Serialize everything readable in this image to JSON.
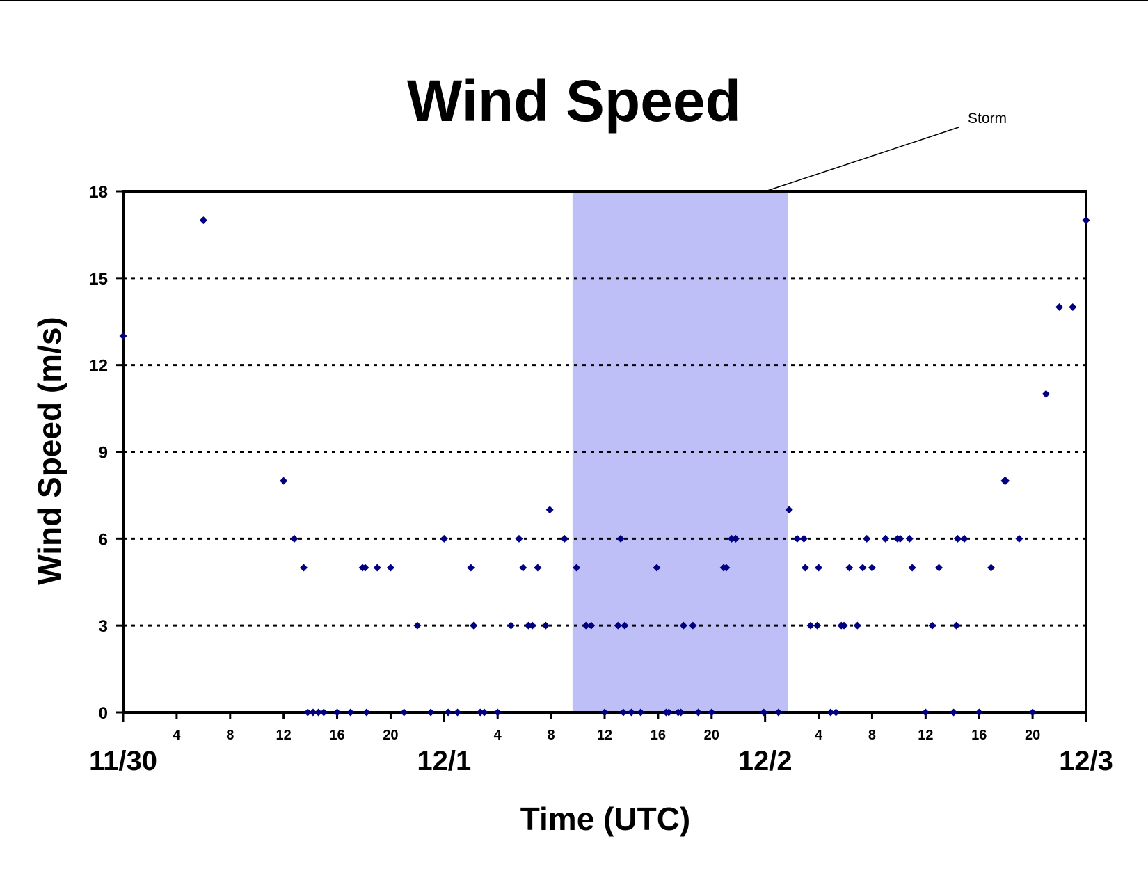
{
  "chart_data": {
    "type": "scatter",
    "title": "Wind Speed",
    "xlabel": "Time (UTC)",
    "ylabel": "Wind Speed (m/s)",
    "x_unit": "hours after 11/30 00 UTC",
    "xlim": [
      0,
      72
    ],
    "ylim": [
      0,
      18
    ],
    "y_ticks": [
      0,
      3,
      6,
      9,
      12,
      15,
      18
    ],
    "x_hour_ticks": [
      {
        "x": 4,
        "label": "4"
      },
      {
        "x": 8,
        "label": "8"
      },
      {
        "x": 12,
        "label": "12"
      },
      {
        "x": 16,
        "label": "16"
      },
      {
        "x": 20,
        "label": "20"
      },
      {
        "x": 28,
        "label": "4"
      },
      {
        "x": 32,
        "label": "8"
      },
      {
        "x": 36,
        "label": "12"
      },
      {
        "x": 40,
        "label": "16"
      },
      {
        "x": 44,
        "label": "20"
      },
      {
        "x": 52,
        "label": "4"
      },
      {
        "x": 56,
        "label": "8"
      },
      {
        "x": 60,
        "label": "12"
      },
      {
        "x": 64,
        "label": "16"
      },
      {
        "x": 68,
        "label": "20"
      }
    ],
    "x_day_ticks": [
      {
        "x": 0,
        "label": "11/30"
      },
      {
        "x": 24,
        "label": "12/1"
      },
      {
        "x": 48,
        "label": "12/2"
      },
      {
        "x": 72,
        "label": "12/3"
      }
    ],
    "grid": "horizontal dotted",
    "shaded_region": {
      "x_start": 33.6,
      "x_end": 49.7,
      "color": "#bfbff8",
      "label": "Storm"
    },
    "marker_color": "#000080",
    "series": [
      {
        "points": [
          [
            0,
            13
          ],
          [
            6,
            17
          ],
          [
            12,
            8
          ],
          [
            12.8,
            6
          ],
          [
            13.5,
            5
          ],
          [
            13.8,
            0
          ],
          [
            14.2,
            0
          ],
          [
            14.6,
            0
          ],
          [
            15,
            0
          ],
          [
            16,
            0
          ],
          [
            17,
            0
          ],
          [
            17.9,
            5
          ],
          [
            18.1,
            5
          ],
          [
            18.2,
            0
          ],
          [
            19,
            5
          ],
          [
            20,
            5
          ],
          [
            21,
            0
          ],
          [
            22,
            3
          ],
          [
            23,
            0
          ],
          [
            24,
            6
          ],
          [
            24.3,
            0
          ],
          [
            25,
            0
          ],
          [
            26,
            5
          ],
          [
            26.2,
            3
          ],
          [
            26.7,
            0
          ],
          [
            27,
            0
          ],
          [
            28,
            0
          ],
          [
            29,
            3
          ],
          [
            29.6,
            6
          ],
          [
            29.9,
            5
          ],
          [
            30.3,
            3
          ],
          [
            30.6,
            3
          ],
          [
            31,
            5
          ],
          [
            31.6,
            3
          ],
          [
            31.9,
            7
          ],
          [
            33,
            6
          ],
          [
            33.9,
            5
          ],
          [
            34.6,
            3
          ],
          [
            35,
            3
          ],
          [
            36,
            0
          ],
          [
            37,
            3
          ],
          [
            37.2,
            6
          ],
          [
            37.4,
            0
          ],
          [
            37.5,
            3
          ],
          [
            38,
            0
          ],
          [
            38.7,
            0
          ],
          [
            39.9,
            5
          ],
          [
            40.6,
            0
          ],
          [
            40.8,
            0
          ],
          [
            41.5,
            0
          ],
          [
            41.7,
            0
          ],
          [
            41.9,
            3
          ],
          [
            42.6,
            3
          ],
          [
            43,
            0
          ],
          [
            44,
            0
          ],
          [
            44.9,
            5
          ],
          [
            45.1,
            5
          ],
          [
            45.5,
            6
          ],
          [
            45.8,
            6
          ],
          [
            47.9,
            0
          ],
          [
            49,
            0
          ],
          [
            49.8,
            7
          ],
          [
            50.4,
            6
          ],
          [
            50.9,
            6
          ],
          [
            51,
            5
          ],
          [
            51.4,
            3
          ],
          [
            51.9,
            3
          ],
          [
            52,
            5
          ],
          [
            52.9,
            0
          ],
          [
            53.3,
            0
          ],
          [
            53.7,
            3
          ],
          [
            53.9,
            3
          ],
          [
            54.3,
            5
          ],
          [
            54.9,
            3
          ],
          [
            55.3,
            5
          ],
          [
            55.6,
            6
          ],
          [
            56,
            5
          ],
          [
            57,
            6
          ],
          [
            57.9,
            6
          ],
          [
            58.1,
            6
          ],
          [
            58.8,
            6
          ],
          [
            59,
            5
          ],
          [
            60,
            0
          ],
          [
            60.5,
            3
          ],
          [
            61,
            5
          ],
          [
            62.1,
            0
          ],
          [
            62.3,
            3
          ],
          [
            62.4,
            6
          ],
          [
            62.9,
            6
          ],
          [
            64,
            0
          ],
          [
            64.9,
            5
          ],
          [
            65.9,
            8
          ],
          [
            66,
            8
          ],
          [
            67,
            6
          ],
          [
            68,
            0
          ],
          [
            69,
            11
          ],
          [
            70,
            14
          ],
          [
            71,
            14
          ],
          [
            72,
            17
          ]
        ]
      }
    ]
  }
}
